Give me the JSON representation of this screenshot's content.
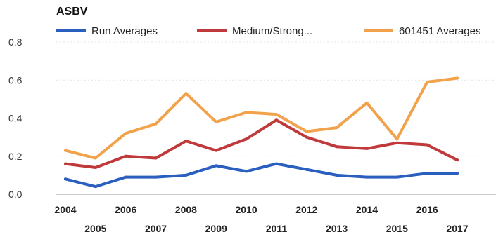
{
  "chart_data": {
    "type": "line",
    "title": "ASBV",
    "x": [
      2004,
      2005,
      2006,
      2007,
      2008,
      2009,
      2010,
      2011,
      2012,
      2013,
      2014,
      2015,
      2016,
      2017
    ],
    "x_tick_labels_top": [
      "2004",
      "2006",
      "2008",
      "2010",
      "2012",
      "2014",
      "2016"
    ],
    "x_tick_labels_bottom": [
      "2005",
      "2007",
      "2009",
      "2011",
      "2013",
      "2015",
      "2017"
    ],
    "y_ticks": [
      "0.0",
      "0.2",
      "0.4",
      "0.6",
      "0.8"
    ],
    "ylim": [
      0,
      0.8
    ],
    "grid": true,
    "legend_position": "top",
    "series": [
      {
        "name": "Run Averages",
        "color": "#2a5fbf",
        "values": [
          0.08,
          0.04,
          0.09,
          0.09,
          0.1,
          0.15,
          0.12,
          0.16,
          0.13,
          0.1,
          0.09,
          0.09,
          0.11,
          0.11
        ]
      },
      {
        "name": "Medium/Strong...",
        "color": "#c0393b",
        "values": [
          0.16,
          0.14,
          0.2,
          0.19,
          0.28,
          0.23,
          0.29,
          0.39,
          0.3,
          0.25,
          0.24,
          0.27,
          0.26,
          0.18
        ]
      },
      {
        "name": "601451 Averages",
        "color": "#f2a24a",
        "values": [
          0.23,
          0.19,
          0.32,
          0.37,
          0.53,
          0.38,
          0.43,
          0.42,
          0.33,
          0.35,
          0.48,
          0.29,
          0.59,
          0.61
        ]
      }
    ]
  }
}
